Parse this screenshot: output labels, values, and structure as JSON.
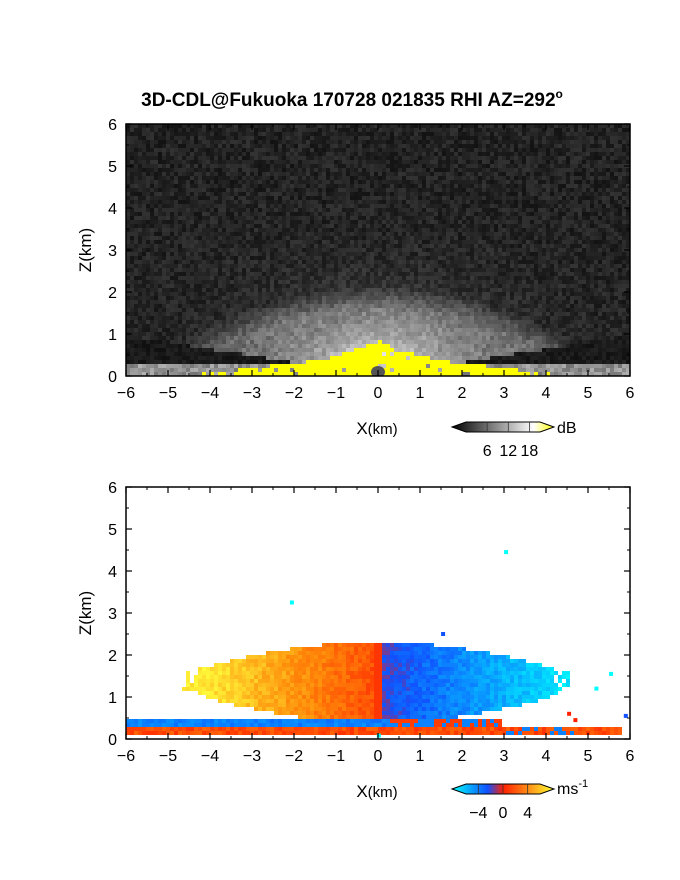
{
  "title": "3D-CDL@Fukuoka 170728 021835 RHI AZ=292",
  "title_degree": "o",
  "chart_data": [
    {
      "type": "heatmap",
      "name": "backscatter",
      "xlabel": "X",
      "xlabel_unit": "(km)",
      "ylabel": "Z(km)",
      "xlim": [
        -6,
        6
      ],
      "ylim": [
        0,
        6
      ],
      "xticks": [
        "-6",
        "-5",
        "-4",
        "-3",
        "-2",
        "-1",
        "0",
        "1",
        "2",
        "3",
        "4",
        "5",
        "6"
      ],
      "yticks": [
        "0",
        "1",
        "2",
        "3",
        "4",
        "5",
        "6"
      ],
      "colorbar": {
        "unit": "dB",
        "ticks": [
          {
            "value": 6,
            "label": "6"
          },
          {
            "value": 12,
            "label": "12"
          },
          {
            "value": 18,
            "label": "18"
          }
        ],
        "range": [
          0,
          21
        ],
        "colors": [
          "#000000",
          "#ffffff",
          "#ffff00"
        ]
      }
    },
    {
      "type": "heatmap",
      "name": "doppler-velocity",
      "xlabel": "X",
      "xlabel_unit": "(km)",
      "ylabel": "Z(km)",
      "xlim": [
        -6,
        6
      ],
      "ylim": [
        0,
        6
      ],
      "xticks": [
        "-6",
        "-5",
        "-4",
        "-3",
        "-2",
        "-1",
        "0",
        "1",
        "2",
        "3",
        "4",
        "5",
        "6"
      ],
      "yticks": [
        "0",
        "1",
        "2",
        "3",
        "4",
        "5",
        "6"
      ],
      "colorbar": {
        "unit": "ms",
        "unit_exp": "-1",
        "ticks": [
          {
            "value": -4,
            "label": "−4"
          },
          {
            "value": 0,
            "label": "0"
          },
          {
            "value": 4,
            "label": "4"
          }
        ],
        "range": [
          -6,
          6
        ],
        "colors": [
          "#00ffff",
          "#1050ff",
          "#ff2000",
          "#ffff30"
        ]
      }
    }
  ]
}
